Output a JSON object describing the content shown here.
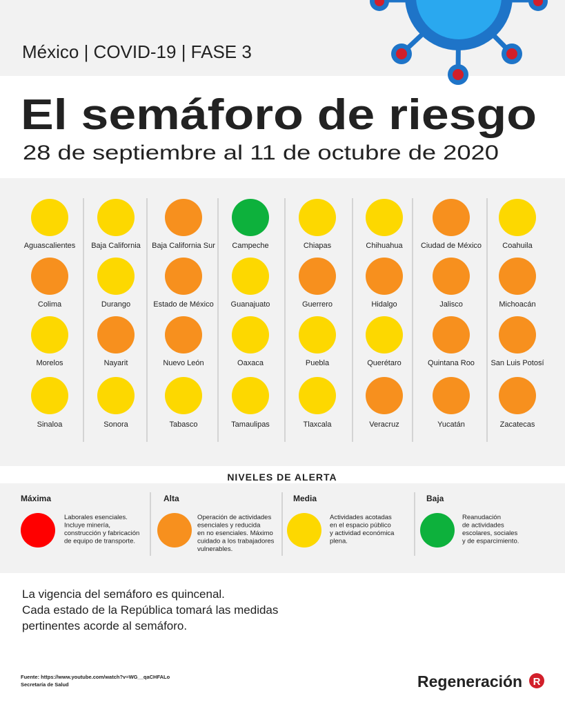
{
  "header": {
    "kicker": "México | COVID-19 | FASE 3",
    "title": "El semáforo de riesgo",
    "dates": "28 de septiembre al 11 de octubre de 2020"
  },
  "states": [
    {
      "name": "Aguascalientes",
      "color": "#fdd800"
    },
    {
      "name": "Baja California",
      "color": "#fdd800"
    },
    {
      "name": "Baja California Sur",
      "color": "#f7901e"
    },
    {
      "name": "Campeche",
      "color": "#0db13c"
    },
    {
      "name": "Chiapas",
      "color": "#fdd800"
    },
    {
      "name": "Chihuahua",
      "color": "#fdd800"
    },
    {
      "name": "Ciudad de México",
      "color": "#f7901e"
    },
    {
      "name": "Coahuila",
      "color": "#fdd800"
    },
    {
      "name": "Colima",
      "color": "#f7901e"
    },
    {
      "name": "Durango",
      "color": "#fdd800"
    },
    {
      "name": "Estado de México",
      "color": "#f7901e"
    },
    {
      "name": "Guanajuato",
      "color": "#fdd800"
    },
    {
      "name": "Guerrero",
      "color": "#f7901e"
    },
    {
      "name": "Hidalgo",
      "color": "#f7901e"
    },
    {
      "name": "Jalisco",
      "color": "#f7901e"
    },
    {
      "name": "Michoacán",
      "color": "#f7901e"
    },
    {
      "name": "Morelos",
      "color": "#fdd800"
    },
    {
      "name": "Nayarit",
      "color": "#f7901e"
    },
    {
      "name": "Nuevo León",
      "color": "#f7901e"
    },
    {
      "name": "Oaxaca",
      "color": "#fdd800"
    },
    {
      "name": "Puebla",
      "color": "#fdd800"
    },
    {
      "name": "Querétaro",
      "color": "#fdd800"
    },
    {
      "name": "Quintana Roo",
      "color": "#f7901e"
    },
    {
      "name": "San Luis Potosí",
      "color": "#f7901e"
    },
    {
      "name": "Sinaloa",
      "color": "#fdd800"
    },
    {
      "name": "Sonora",
      "color": "#fdd800"
    },
    {
      "name": "Tabasco",
      "color": "#fdd800"
    },
    {
      "name": "Tamaulipas",
      "color": "#fdd800"
    },
    {
      "name": "Tlaxcala",
      "color": "#fdd800"
    },
    {
      "name": "Veracruz",
      "color": "#f7901e"
    },
    {
      "name": "Yucatán",
      "color": "#f7901e"
    },
    {
      "name": "Zacatecas",
      "color": "#f7901e"
    }
  ],
  "legend": {
    "title": "NIVELES DE ALERTA",
    "levels": [
      {
        "name": "Máxima",
        "color": "#ff0000",
        "lines": [
          "Laborales esenciales.",
          "Incluye minería,",
          "construcción y fabricación",
          "de equipo de transporte."
        ]
      },
      {
        "name": "Alta",
        "color": "#f7901e",
        "lines": [
          "Operación de actividades",
          "esenciales y reducida",
          "en no esenciales. Máximo",
          "cuidado a los trabajadores",
          "vulnerables."
        ]
      },
      {
        "name": "Media",
        "color": "#fdd800",
        "lines": [
          "Actividades acotadas",
          "en el espacio público",
          "y actividad económica",
          "plena."
        ]
      },
      {
        "name": "Baja",
        "color": "#0db13c",
        "lines": [
          "Reanudación",
          "de actividades",
          "escolares, sociales",
          "y de esparcimiento."
        ]
      }
    ]
  },
  "note": [
    "La vigencia del semáforo es quincenal.",
    "Cada estado de la República tomará las medidas",
    "pertinentes acorde al semáforo."
  ],
  "source": [
    "Fuente: https://www.youtube.com/watch?v=WG__qaCHFALo",
    "Secretaría de Salud"
  ],
  "brand": "Regeneración",
  "brand_mark": "R"
}
